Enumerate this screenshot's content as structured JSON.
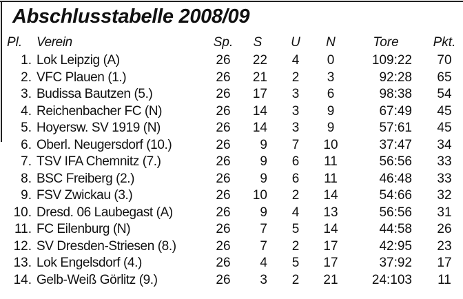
{
  "title": "Abschlusstabelle 2008/09",
  "headers": {
    "pl": "Pl.",
    "verein": "Verein",
    "sp": "Sp.",
    "s": "S",
    "u": "U",
    "n": "N",
    "tore": "Tore",
    "pkt": "Pkt."
  },
  "rows": [
    {
      "pl": "1.",
      "verein": "Lok Leipzig (A)",
      "sp": "26",
      "s": "22",
      "u": "4",
      "n": "0",
      "tore": "109:22",
      "pkt": "70"
    },
    {
      "pl": "2.",
      "verein": "VFC Plauen (1.)",
      "sp": "26",
      "s": "21",
      "u": "2",
      "n": "3",
      "tore": "92:28",
      "pkt": "65"
    },
    {
      "pl": "3.",
      "verein": "Budissa Bautzen (5.)",
      "sp": "26",
      "s": "17",
      "u": "3",
      "n": "6",
      "tore": "98:38",
      "pkt": "54"
    },
    {
      "pl": "4.",
      "verein": "Reichenbacher FC (N)",
      "sp": "26",
      "s": "14",
      "u": "3",
      "n": "9",
      "tore": "67:49",
      "pkt": "45"
    },
    {
      "pl": "5.",
      "verein": "Hoyersw. SV 1919 (N)",
      "sp": "26",
      "s": "14",
      "u": "3",
      "n": "9",
      "tore": "57:61",
      "pkt": "45"
    },
    {
      "pl": "6.",
      "verein": "Oberl. Neugersdorf (10.)",
      "sp": "26",
      "s": "9",
      "u": "7",
      "n": "10",
      "tore": "37:47",
      "pkt": "34"
    },
    {
      "pl": "7.",
      "verein": "TSV IFA Chemnitz (7.)",
      "sp": "26",
      "s": "9",
      "u": "6",
      "n": "11",
      "tore": "56:56",
      "pkt": "33"
    },
    {
      "pl": "8.",
      "verein": "BSC Freiberg (2.)",
      "sp": "26",
      "s": "9",
      "u": "6",
      "n": "11",
      "tore": "46:48",
      "pkt": "33"
    },
    {
      "pl": "9.",
      "verein": "FSV Zwickau (3.)",
      "sp": "26",
      "s": "10",
      "u": "2",
      "n": "14",
      "tore": "54:66",
      "pkt": "32"
    },
    {
      "pl": "10.",
      "verein": "Dresd. 06 Laubegast (A)",
      "sp": "26",
      "s": "9",
      "u": "4",
      "n": "13",
      "tore": "56:56",
      "pkt": "31"
    },
    {
      "pl": "11.",
      "verein": "FC Eilenburg (N)",
      "sp": "26",
      "s": "7",
      "u": "5",
      "n": "14",
      "tore": "44:58",
      "pkt": "26"
    },
    {
      "pl": "12.",
      "verein": "SV Dresden-Striesen (8.)",
      "sp": "26",
      "s": "7",
      "u": "2",
      "n": "17",
      "tore": "42:95",
      "pkt": "23"
    },
    {
      "pl": "13.",
      "verein": "Lok Engelsdorf (4.)",
      "sp": "26",
      "s": "4",
      "u": "5",
      "n": "17",
      "tore": "37:92",
      "pkt": "17"
    },
    {
      "pl": "14.",
      "verein": "Gelb-Weiß Görlitz (9.)",
      "sp": "26",
      "s": "3",
      "u": "2",
      "n": "21",
      "tore": "24:103",
      "pkt": "11"
    }
  ]
}
